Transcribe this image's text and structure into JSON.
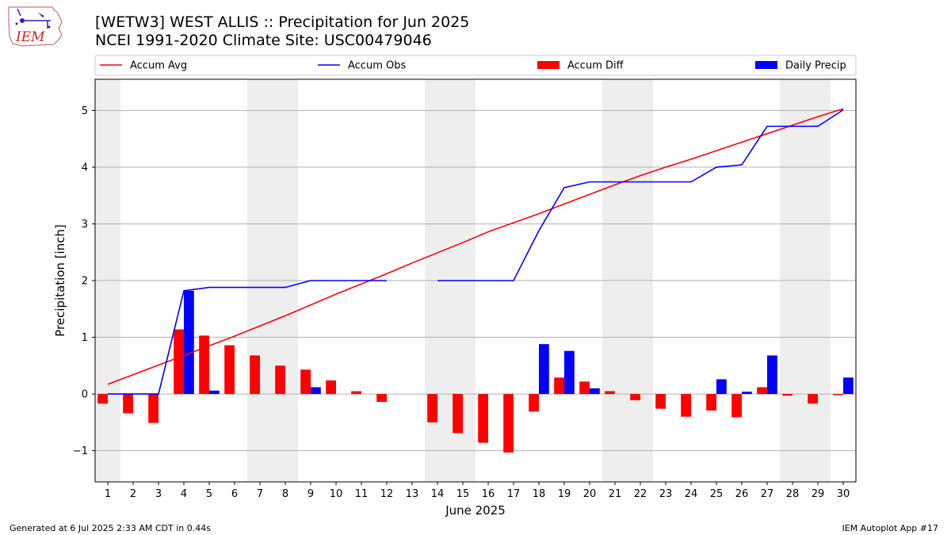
{
  "header": {
    "title_line1": "[WETW3] WEST ALLIS :: Precipitation for Jun 2025",
    "title_line2": "NCEI 1991-2020 Climate Site: USC00479046",
    "logo_text": "IEM"
  },
  "footer": {
    "left": "Generated at 6 Jul 2025 2:33 AM CDT in 0.44s",
    "right": "IEM Autoplot App #17"
  },
  "colors": {
    "avg": "#ff0000",
    "obs": "#0000ff",
    "diff": "#ff0000",
    "daily": "#0000ff",
    "weekend_band": "#eeeeee",
    "grid": "#b0b0b0"
  },
  "chart_data": {
    "type": "bar",
    "xlabel": "June 2025",
    "ylabel": "Precipitation [inch]",
    "ylim": [
      -1.55,
      5.55
    ],
    "xlim": [
      0.5,
      30.5
    ],
    "yticks": [
      -1,
      0,
      1,
      2,
      3,
      4,
      5
    ],
    "ytick_labels": [
      "−1",
      "0",
      "1",
      "2",
      "3",
      "4",
      "5"
    ],
    "days": [
      1,
      2,
      3,
      4,
      5,
      6,
      7,
      8,
      9,
      10,
      11,
      12,
      13,
      14,
      15,
      16,
      17,
      18,
      19,
      20,
      21,
      22,
      23,
      24,
      25,
      26,
      27,
      28,
      29,
      30
    ],
    "grid": "horizontal",
    "legend_position": "top",
    "weekend_bands": [
      [
        0.5,
        1.5
      ],
      [
        6.5,
        8.5
      ],
      [
        13.5,
        15.5
      ],
      [
        20.5,
        22.5
      ],
      [
        27.5,
        29.5
      ]
    ],
    "legend": [
      {
        "label": "Accum Avg",
        "kind": "line",
        "color": "#ff0000"
      },
      {
        "label": "Accum Obs",
        "kind": "line",
        "color": "#0000ff"
      },
      {
        "label": "Accum Diff",
        "kind": "bar",
        "color": "#ff0000"
      },
      {
        "label": "Daily Precip",
        "kind": "bar",
        "color": "#0000ff"
      }
    ],
    "series": [
      {
        "name": "Accum Avg",
        "type": "line",
        "values": [
          0.17,
          0.34,
          0.51,
          0.68,
          0.85,
          1.02,
          1.2,
          1.38,
          1.57,
          1.76,
          1.94,
          2.12,
          2.31,
          2.49,
          2.67,
          2.86,
          3.02,
          3.18,
          3.35,
          3.52,
          3.69,
          3.85,
          4.0,
          4.14,
          4.29,
          4.44,
          4.59,
          4.74,
          4.89,
          5.03
        ]
      },
      {
        "name": "Accum Obs",
        "type": "line",
        "values": [
          0.0,
          0.0,
          0.0,
          1.82,
          1.88,
          1.88,
          1.88,
          1.88,
          2.0,
          2.0,
          2.0,
          2.0,
          null,
          2.0,
          2.0,
          2.0,
          2.0,
          2.88,
          3.64,
          3.74,
          3.74,
          3.74,
          3.74,
          3.74,
          4.0,
          4.04,
          4.72,
          4.72,
          4.72,
          5.01
        ]
      },
      {
        "name": "Accum Diff",
        "type": "bar",
        "values": [
          -0.17,
          -0.34,
          -0.51,
          1.14,
          1.03,
          0.86,
          0.68,
          0.5,
          0.43,
          0.24,
          0.05,
          -0.14,
          null,
          -0.5,
          -0.69,
          -0.86,
          -1.03,
          -0.31,
          0.29,
          0.22,
          0.05,
          -0.11,
          -0.26,
          -0.4,
          -0.29,
          -0.41,
          0.12,
          -0.03,
          -0.17,
          -0.02
        ]
      },
      {
        "name": "Daily Precip",
        "type": "bar",
        "values": [
          0,
          0,
          0,
          1.82,
          0.06,
          0,
          0,
          0,
          0.12,
          0,
          0,
          0,
          null,
          0,
          0,
          0,
          0,
          0.88,
          0.76,
          0.1,
          0,
          0,
          0,
          0,
          0.26,
          0.04,
          0.68,
          0,
          0,
          0.29
        ]
      }
    ]
  }
}
